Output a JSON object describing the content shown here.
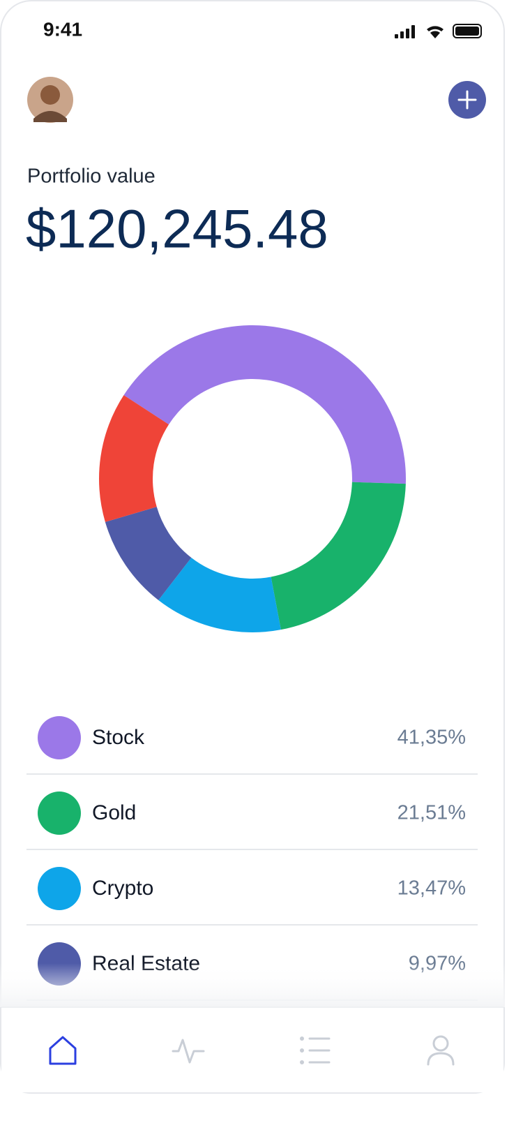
{
  "status_time": "9:41",
  "header": {
    "label": "Portfolio value",
    "amount": "$120,245.48"
  },
  "chart_data": {
    "type": "donut",
    "categories": [
      "Stock",
      "Gold",
      "Crypto",
      "Real Estate",
      null
    ],
    "values": [
      41.35,
      21.51,
      13.47,
      9.97,
      13.7
    ],
    "value_labels": [
      "41,35%",
      "21,51%",
      "13,47%",
      "9,97%",
      null
    ],
    "colors": [
      "#9b78e8",
      "#18b26b",
      "#0ea5e9",
      "#4f5ba8",
      "#ef4438"
    ]
  }
}
